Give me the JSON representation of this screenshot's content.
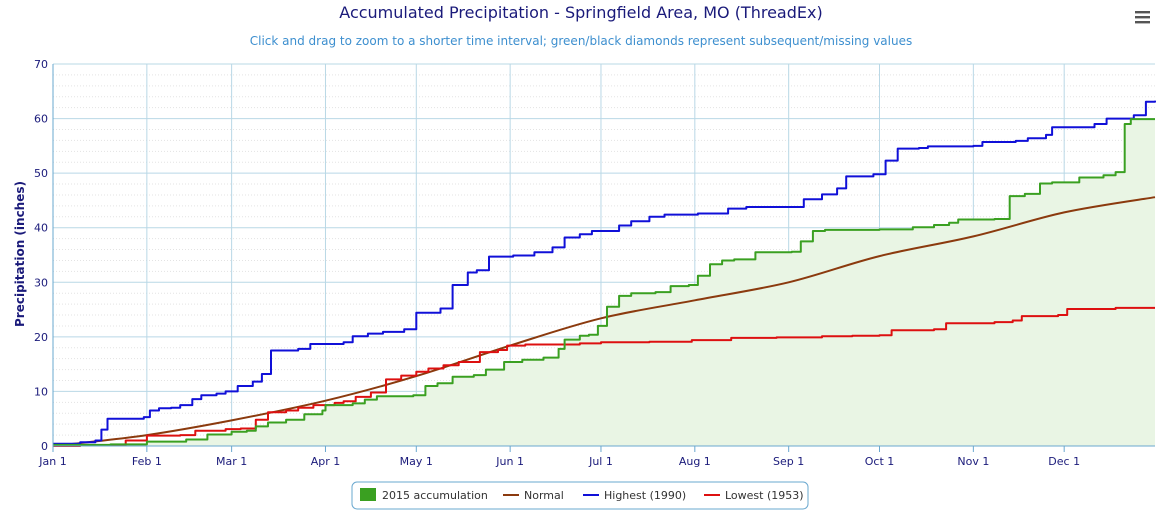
{
  "menu_icon": "hamburger-menu-icon",
  "colors": {
    "accumulation": "#3aa021",
    "accumulation_fill": "#e9f5e4",
    "normal": "#8b3a0e",
    "highest": "#1010d8",
    "lowest": "#dd1010",
    "grid": "#b9d8e6",
    "minor_grid": "#e3e3e3"
  },
  "chart_data": {
    "type": "line",
    "title": "Accumulated Precipitation - Springfield Area, MO (ThreadEx)",
    "subtitle": "Click and drag to zoom to a shorter time interval; green/black diamonds represent subsequent/missing values",
    "ylabel": "Precipitation (inches)",
    "xlabel": "",
    "ylim": [
      0,
      70
    ],
    "yticks": [
      "0",
      "10",
      "20",
      "30",
      "40",
      "50",
      "60",
      "70"
    ],
    "x_units": "day of year",
    "xlim": [
      1,
      365
    ],
    "month_ticks": [
      {
        "label": "Jan 1",
        "day": 1
      },
      {
        "label": "Feb 1",
        "day": 32
      },
      {
        "label": "Mar 1",
        "day": 60
      },
      {
        "label": "Apr 1",
        "day": 91
      },
      {
        "label": "May 1",
        "day": 121
      },
      {
        "label": "Jun 1",
        "day": 152
      },
      {
        "label": "Jul 1",
        "day": 182
      },
      {
        "label": "Aug 1",
        "day": 213
      },
      {
        "label": "Sep 1",
        "day": 244
      },
      {
        "label": "Oct 1",
        "day": 274
      },
      {
        "label": "Nov 1",
        "day": 305
      },
      {
        "label": "Dec 1",
        "day": 335
      }
    ],
    "grid": true,
    "legend_position": "bottom-center",
    "series": [
      {
        "name": "2015 accumulation",
        "key": "accumulation",
        "style": "area-step",
        "points": [
          [
            1,
            0.2
          ],
          [
            20,
            0.3
          ],
          [
            32,
            0.8
          ],
          [
            45,
            1.2
          ],
          [
            52,
            2.1
          ],
          [
            60,
            2.6
          ],
          [
            65,
            2.8
          ],
          [
            68,
            3.6
          ],
          [
            72,
            4.3
          ],
          [
            78,
            4.8
          ],
          [
            84,
            5.8
          ],
          [
            90,
            6.5
          ],
          [
            91,
            7.5
          ],
          [
            100,
            7.8
          ],
          [
            104,
            8.5
          ],
          [
            108,
            9.1
          ],
          [
            113,
            9.1
          ],
          [
            120,
            9.3
          ],
          [
            124,
            11.0
          ],
          [
            128,
            11.5
          ],
          [
            133,
            12.7
          ],
          [
            140,
            13.0
          ],
          [
            144,
            14.0
          ],
          [
            150,
            15.4
          ],
          [
            156,
            15.8
          ],
          [
            163,
            16.2
          ],
          [
            168,
            17.8
          ],
          [
            170,
            19.5
          ],
          [
            175,
            20.2
          ],
          [
            178,
            20.4
          ],
          [
            181,
            22.0
          ],
          [
            184,
            25.5
          ],
          [
            188,
            27.5
          ],
          [
            192,
            28.0
          ],
          [
            200,
            28.2
          ],
          [
            205,
            29.3
          ],
          [
            211,
            29.5
          ],
          [
            214,
            31.2
          ],
          [
            218,
            33.3
          ],
          [
            222,
            34.0
          ],
          [
            226,
            34.2
          ],
          [
            233,
            35.5
          ],
          [
            245,
            35.6
          ],
          [
            248,
            37.5
          ],
          [
            252,
            39.4
          ],
          [
            256,
            39.6
          ],
          [
            274,
            39.7
          ],
          [
            285,
            40.1
          ],
          [
            292,
            40.5
          ],
          [
            297,
            40.9
          ],
          [
            300,
            41.5
          ],
          [
            312,
            41.6
          ],
          [
            317,
            45.8
          ],
          [
            322,
            46.2
          ],
          [
            327,
            48.1
          ],
          [
            331,
            48.3
          ],
          [
            340,
            49.2
          ],
          [
            348,
            49.6
          ],
          [
            352,
            50.2
          ],
          [
            355,
            59.0
          ],
          [
            357,
            59.9
          ],
          [
            365,
            59.9
          ]
        ]
      },
      {
        "name": "Normal",
        "key": "normal",
        "style": "smooth",
        "points": [
          [
            1,
            0.0
          ],
          [
            32,
            2.0
          ],
          [
            60,
            4.7
          ],
          [
            91,
            8.3
          ],
          [
            121,
            12.8
          ],
          [
            152,
            18.4
          ],
          [
            182,
            23.4
          ],
          [
            213,
            26.7
          ],
          [
            244,
            30.0
          ],
          [
            274,
            34.8
          ],
          [
            305,
            38.4
          ],
          [
            335,
            42.8
          ],
          [
            365,
            45.6
          ]
        ]
      },
      {
        "name": "Highest (1990)",
        "key": "highest",
        "style": "step",
        "points": [
          [
            1,
            0.4
          ],
          [
            10,
            0.7
          ],
          [
            15,
            1.0
          ],
          [
            17,
            3.0
          ],
          [
            19,
            5.0
          ],
          [
            31,
            5.3
          ],
          [
            33,
            6.5
          ],
          [
            36,
            6.9
          ],
          [
            40,
            7.0
          ],
          [
            43,
            7.5
          ],
          [
            47,
            8.6
          ],
          [
            50,
            9.3
          ],
          [
            55,
            9.6
          ],
          [
            58,
            10.0
          ],
          [
            62,
            11.0
          ],
          [
            67,
            11.8
          ],
          [
            70,
            13.2
          ],
          [
            73,
            17.5
          ],
          [
            82,
            17.8
          ],
          [
            86,
            18.7
          ],
          [
            97,
            19.0
          ],
          [
            100,
            20.1
          ],
          [
            105,
            20.6
          ],
          [
            110,
            20.9
          ],
          [
            117,
            21.4
          ],
          [
            121,
            24.4
          ],
          [
            129,
            25.2
          ],
          [
            133,
            29.5
          ],
          [
            138,
            31.8
          ],
          [
            141,
            32.2
          ],
          [
            145,
            34.7
          ],
          [
            153,
            34.9
          ],
          [
            160,
            35.5
          ],
          [
            166,
            36.4
          ],
          [
            170,
            38.2
          ],
          [
            175,
            38.8
          ],
          [
            179,
            39.4
          ],
          [
            188,
            40.4
          ],
          [
            192,
            41.2
          ],
          [
            198,
            42.0
          ],
          [
            203,
            42.4
          ],
          [
            214,
            42.6
          ],
          [
            224,
            43.5
          ],
          [
            230,
            43.8
          ],
          [
            249,
            45.2
          ],
          [
            255,
            46.1
          ],
          [
            260,
            47.2
          ],
          [
            263,
            49.4
          ],
          [
            272,
            49.8
          ],
          [
            276,
            52.3
          ],
          [
            280,
            54.5
          ],
          [
            287,
            54.6
          ],
          [
            290,
            54.9
          ],
          [
            305,
            55.0
          ],
          [
            308,
            55.7
          ],
          [
            319,
            55.9
          ],
          [
            323,
            56.4
          ],
          [
            329,
            57.0
          ],
          [
            331,
            58.4
          ],
          [
            345,
            59.0
          ],
          [
            349,
            60.0
          ],
          [
            358,
            60.6
          ],
          [
            362,
            63.1
          ],
          [
            365,
            63.3
          ]
        ]
      },
      {
        "name": "Lowest (1953)",
        "key": "lowest",
        "style": "step",
        "points": [
          [
            1,
            0.0
          ],
          [
            10,
            0.1
          ],
          [
            22,
            0.2
          ],
          [
            25,
            1.0
          ],
          [
            32,
            1.9
          ],
          [
            43,
            2.0
          ],
          [
            48,
            2.8
          ],
          [
            58,
            3.1
          ],
          [
            63,
            3.2
          ],
          [
            68,
            4.8
          ],
          [
            72,
            6.2
          ],
          [
            78,
            6.5
          ],
          [
            82,
            7.0
          ],
          [
            87,
            7.5
          ],
          [
            94,
            7.9
          ],
          [
            97,
            8.2
          ],
          [
            101,
            9.0
          ],
          [
            106,
            9.8
          ],
          [
            111,
            12.2
          ],
          [
            116,
            12.9
          ],
          [
            121,
            13.6
          ],
          [
            125,
            14.2
          ],
          [
            130,
            14.8
          ],
          [
            135,
            15.4
          ],
          [
            142,
            17.2
          ],
          [
            148,
            17.6
          ],
          [
            151,
            18.4
          ],
          [
            157,
            18.6
          ],
          [
            175,
            18.8
          ],
          [
            182,
            19.0
          ],
          [
            198,
            19.1
          ],
          [
            212,
            19.4
          ],
          [
            225,
            19.8
          ],
          [
            240,
            19.9
          ],
          [
            255,
            20.1
          ],
          [
            265,
            20.2
          ],
          [
            274,
            20.3
          ],
          [
            278,
            21.2
          ],
          [
            292,
            21.4
          ],
          [
            296,
            22.5
          ],
          [
            312,
            22.7
          ],
          [
            318,
            23.0
          ],
          [
            321,
            23.8
          ],
          [
            333,
            24.0
          ],
          [
            336,
            25.1
          ],
          [
            352,
            25.3
          ],
          [
            365,
            25.3
          ]
        ]
      }
    ]
  }
}
